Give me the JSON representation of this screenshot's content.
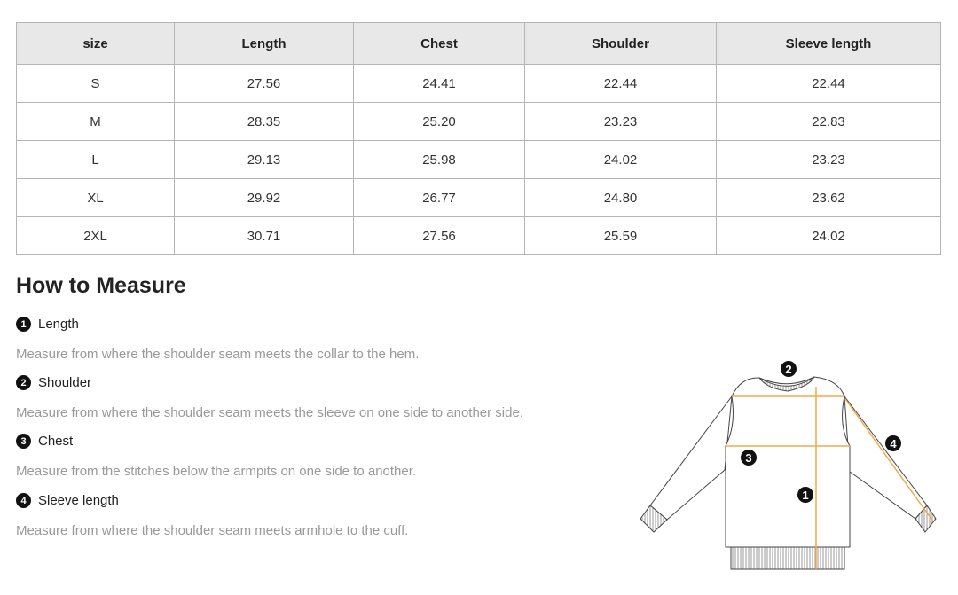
{
  "table": {
    "headers": [
      "size",
      "Length",
      "Chest",
      "Shoulder",
      "Sleeve length"
    ],
    "rows": [
      [
        "S",
        "27.56",
        "24.41",
        "22.44",
        "22.44"
      ],
      [
        "M",
        "28.35",
        "25.20",
        "23.23",
        "22.83"
      ],
      [
        "L",
        "29.13",
        "25.98",
        "24.02",
        "23.23"
      ],
      [
        "XL",
        "29.92",
        "26.77",
        "24.80",
        "23.62"
      ],
      [
        "2XL",
        "30.71",
        "27.56",
        "25.59",
        "24.02"
      ]
    ]
  },
  "guide": {
    "title": "How to Measure",
    "items": [
      {
        "num": "1",
        "label": "Length",
        "desc": "Measure from where the shoulder seam meets the collar to the hem."
      },
      {
        "num": "2",
        "label": "Shoulder",
        "desc": "Measure from where the shoulder seam meets the sleeve on one side to another side."
      },
      {
        "num": "3",
        "label": "Chest",
        "desc": "Measure from the stitches below the armpits on one side to another."
      },
      {
        "num": "4",
        "label": "Sleeve length",
        "desc": "Measure from where the shoulder seam meets armhole to the cuff."
      }
    ],
    "diagram_markers": [
      "1",
      "2",
      "3",
      "4"
    ],
    "accent_color": "#f5a84a"
  }
}
